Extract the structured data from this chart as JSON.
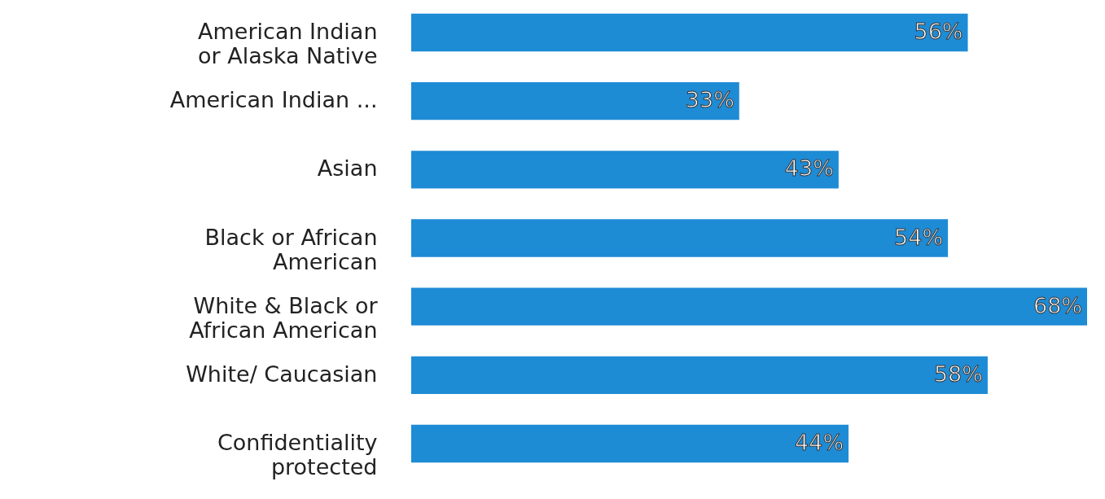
{
  "chart_data": {
    "type": "bar",
    "orientation": "horizontal",
    "categories": [
      "American Indian\nor Alaska Native",
      "American Indian ...",
      "Asian",
      "Black or African\nAmerican",
      "White & Black or\nAfrican American",
      "White/ Caucasian",
      "Confidentiality\nprotected"
    ],
    "values": [
      56,
      33,
      43,
      54,
      68,
      58,
      44
    ],
    "value_labels": [
      "56%",
      "33%",
      "43%",
      "54%",
      "68%",
      "58%",
      "44%"
    ],
    "color": "#1e8bd5"
  }
}
